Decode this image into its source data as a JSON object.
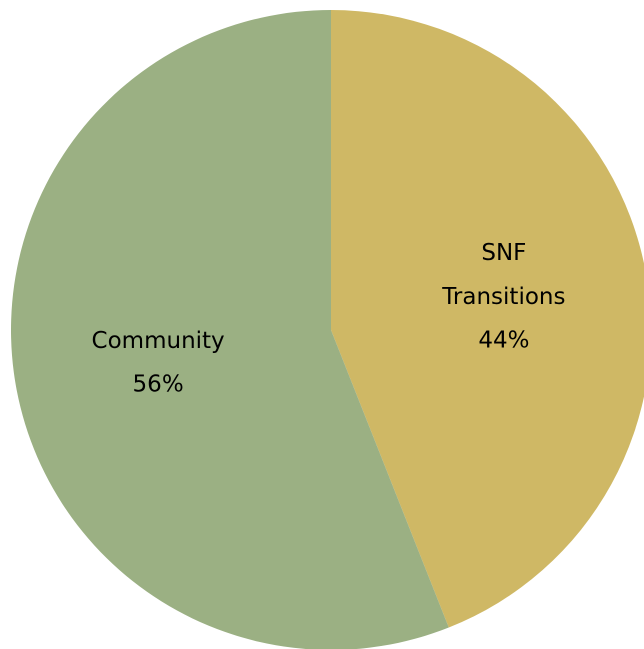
{
  "chart_data": {
    "type": "pie",
    "categories": [
      "SNF Transitions",
      "Community"
    ],
    "values": [
      44,
      56
    ],
    "value_labels": [
      "44%",
      "56%"
    ],
    "colors": [
      "#cfb865",
      "#9bb083"
    ]
  }
}
